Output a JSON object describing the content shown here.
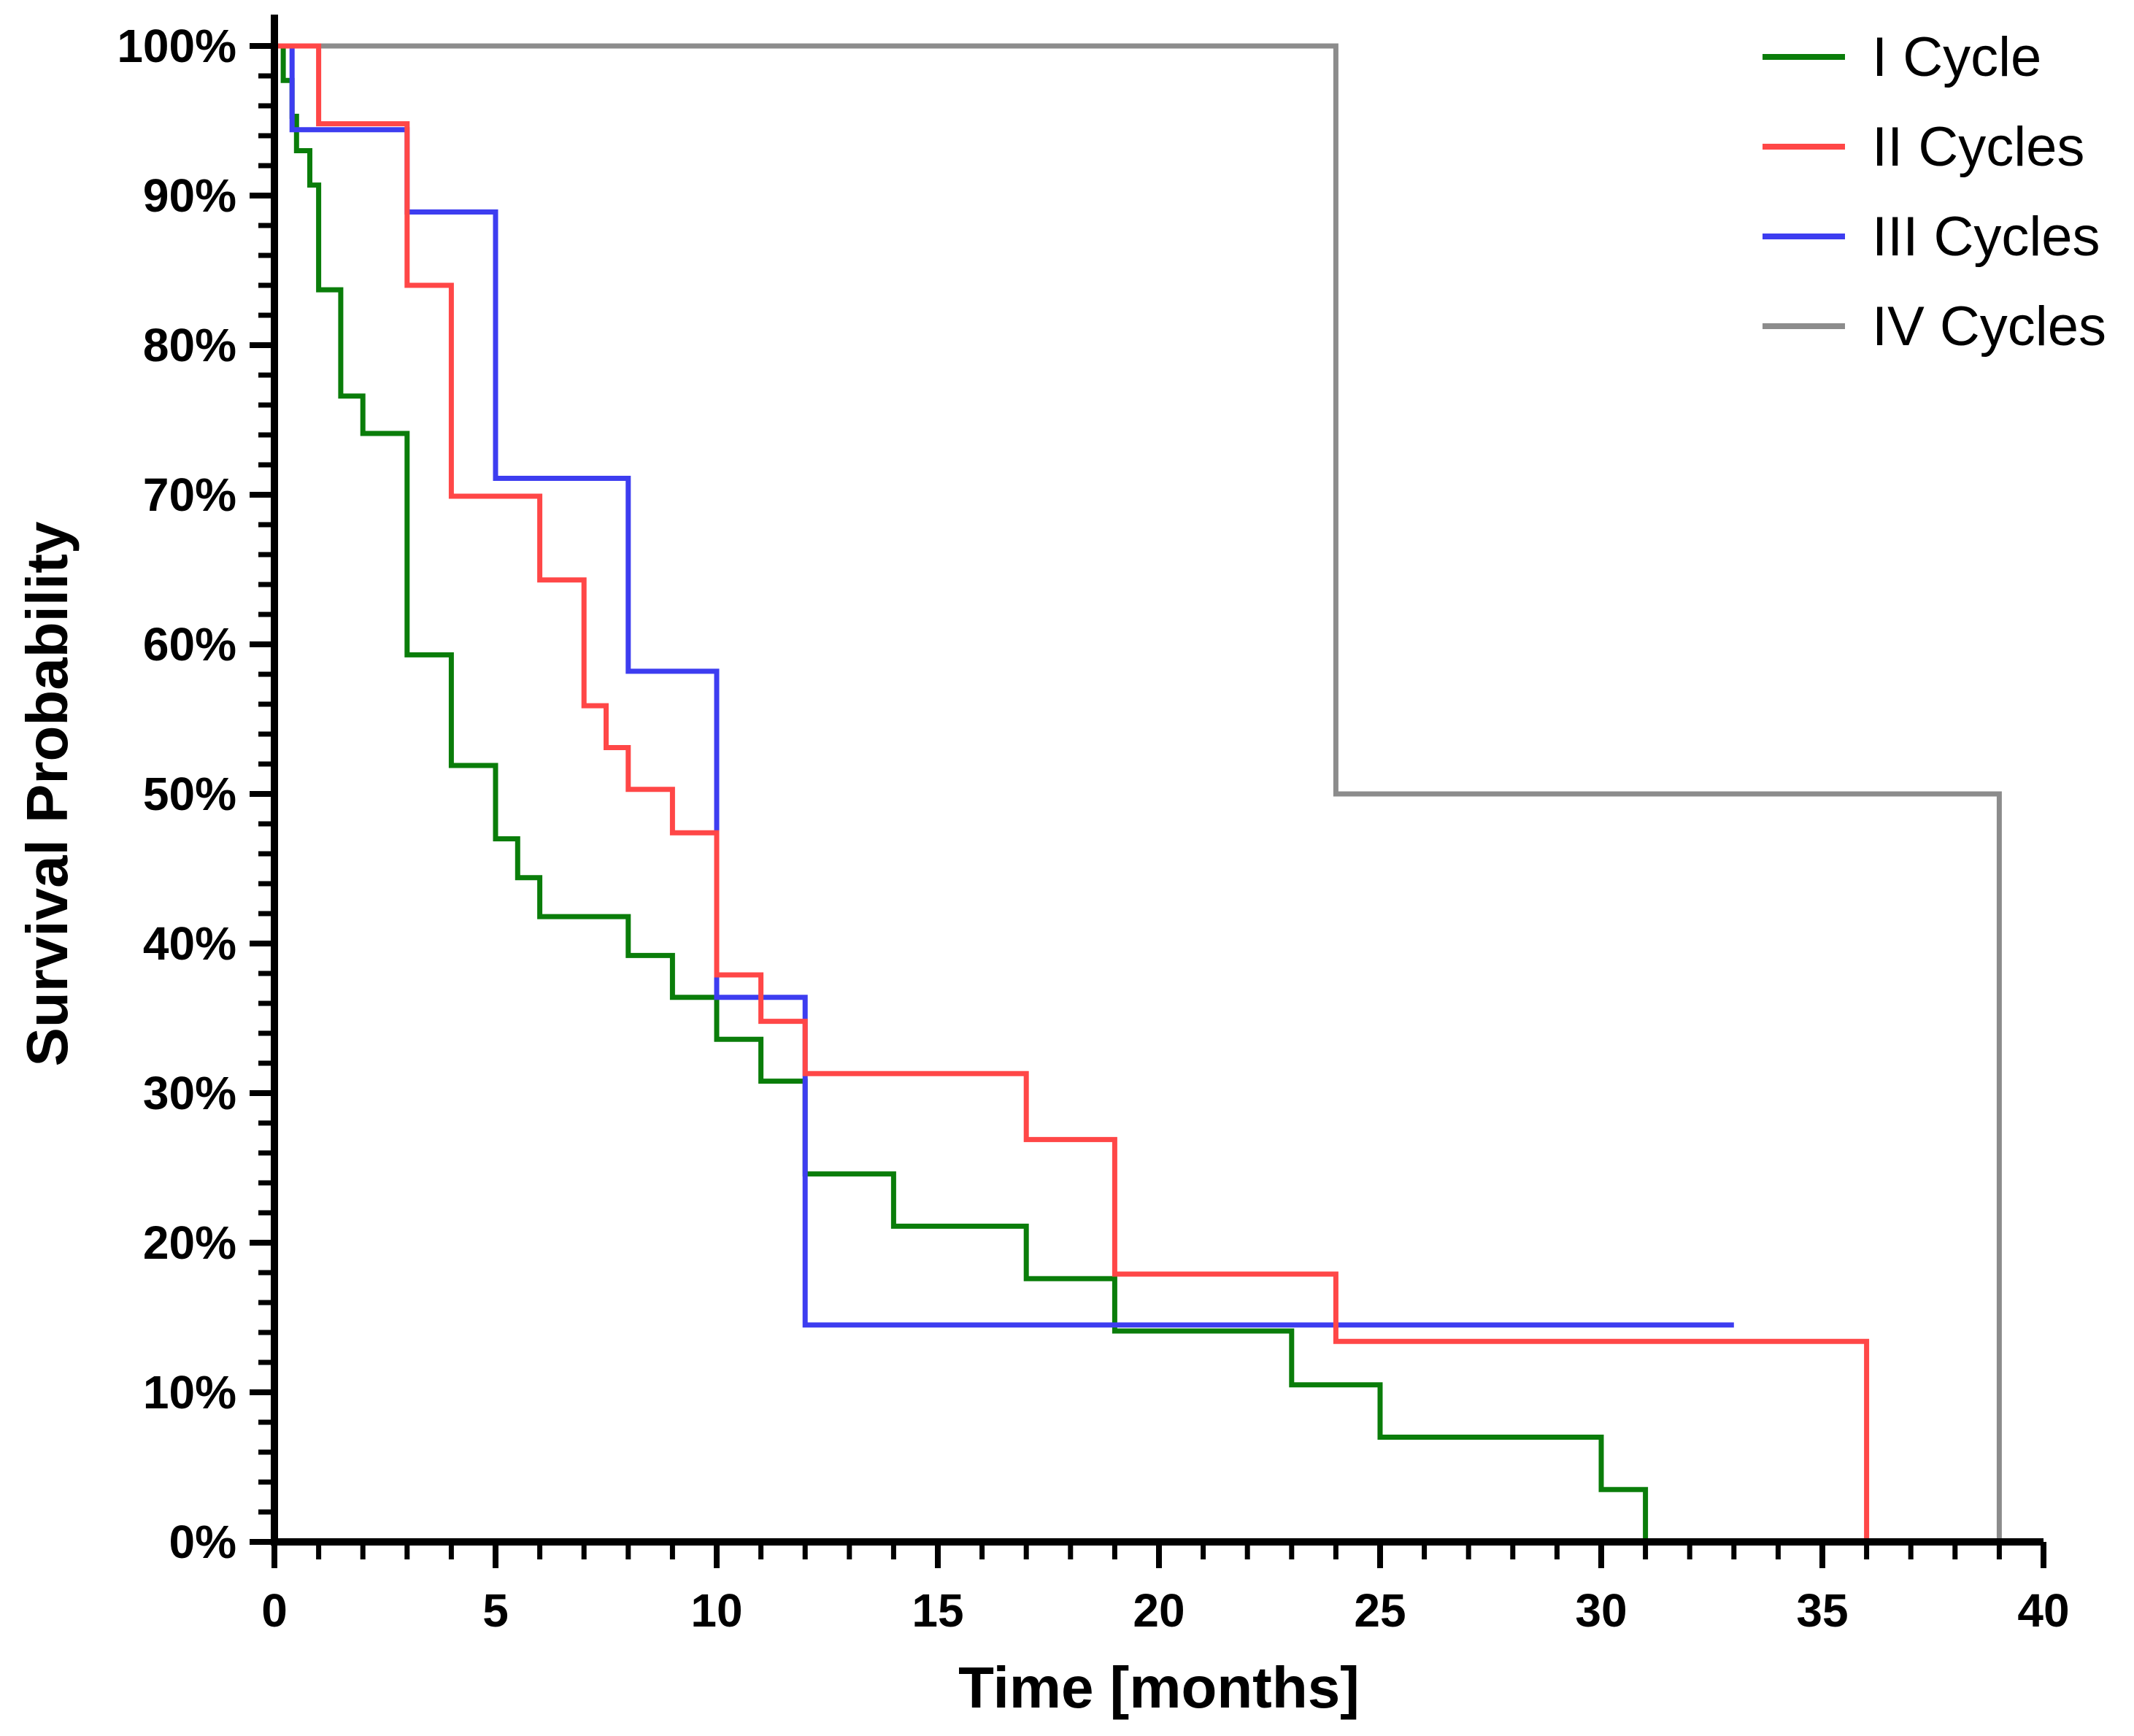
{
  "chart_data": {
    "type": "line",
    "step": true,
    "title": "",
    "xlabel": "Time [months]",
    "ylabel": "Survival Probability",
    "xlim": [
      0,
      40
    ],
    "ylim": [
      0,
      100
    ],
    "x_ticks": [
      0,
      5,
      10,
      15,
      20,
      25,
      30,
      35,
      40
    ],
    "x_tick_labels": [
      "0",
      "5",
      "10",
      "15",
      "20",
      "25",
      "30",
      "35",
      "40"
    ],
    "y_ticks": [
      0,
      10,
      20,
      30,
      40,
      50,
      60,
      70,
      80,
      90,
      100
    ],
    "y_tick_labels": [
      "0%",
      "10%",
      "20%",
      "30%",
      "40%",
      "50%",
      "60%",
      "70%",
      "80%",
      "90%",
      "100%"
    ],
    "legend_position": "top-right",
    "series": [
      {
        "name": "I Cycle",
        "color": "#0a7d0a",
        "points": [
          [
            0,
            100
          ],
          [
            0.2,
            100
          ],
          [
            0.2,
            97.7
          ],
          [
            0.4,
            97.7
          ],
          [
            0.4,
            95.3
          ],
          [
            0.5,
            95.3
          ],
          [
            0.5,
            93
          ],
          [
            0.8,
            93
          ],
          [
            0.8,
            90.7
          ],
          [
            1,
            90.7
          ],
          [
            1,
            83.7
          ],
          [
            1.5,
            83.7
          ],
          [
            1.5,
            76.6
          ],
          [
            2,
            76.6
          ],
          [
            2,
            74.1
          ],
          [
            3,
            74.1
          ],
          [
            3,
            59.3
          ],
          [
            4,
            59.3
          ],
          [
            4,
            51.9
          ],
          [
            5,
            51.9
          ],
          [
            5,
            47
          ],
          [
            5.5,
            47
          ],
          [
            5.5,
            44.4
          ],
          [
            6,
            44.4
          ],
          [
            6,
            41.8
          ],
          [
            8,
            41.8
          ],
          [
            8,
            39.2
          ],
          [
            9,
            39.2
          ],
          [
            9,
            36.4
          ],
          [
            10,
            36.4
          ],
          [
            10,
            33.6
          ],
          [
            11,
            33.6
          ],
          [
            11,
            30.8
          ],
          [
            12,
            30.8
          ],
          [
            12,
            24.6
          ],
          [
            14,
            24.6
          ],
          [
            14,
            21.1
          ],
          [
            17,
            21.1
          ],
          [
            17,
            17.6
          ],
          [
            19,
            17.6
          ],
          [
            19,
            14.1
          ],
          [
            23,
            14.1
          ],
          [
            23,
            10.5
          ],
          [
            25,
            10.5
          ],
          [
            25,
            7
          ],
          [
            30,
            7
          ],
          [
            30,
            3.5
          ],
          [
            31,
            3.5
          ],
          [
            31,
            0
          ]
        ]
      },
      {
        "name": "II Cycles",
        "color": "#ff4747",
        "points": [
          [
            0,
            100
          ],
          [
            1,
            100
          ],
          [
            1,
            94.8
          ],
          [
            3,
            94.8
          ],
          [
            3,
            84
          ],
          [
            4,
            84
          ],
          [
            4,
            69.9
          ],
          [
            6,
            69.9
          ],
          [
            6,
            64.3
          ],
          [
            7,
            64.3
          ],
          [
            7,
            55.9
          ],
          [
            7.5,
            55.9
          ],
          [
            7.5,
            53.1
          ],
          [
            8,
            53.1
          ],
          [
            8,
            50.3
          ],
          [
            9,
            50.3
          ],
          [
            9,
            47.4
          ],
          [
            10,
            47.4
          ],
          [
            10,
            37.9
          ],
          [
            11,
            37.9
          ],
          [
            11,
            34.8
          ],
          [
            12,
            34.8
          ],
          [
            12,
            31.3
          ],
          [
            17,
            31.3
          ],
          [
            17,
            26.9
          ],
          [
            19,
            26.9
          ],
          [
            19,
            17.9
          ],
          [
            24,
            17.9
          ],
          [
            24,
            13.4
          ],
          [
            36,
            13.4
          ],
          [
            36,
            0
          ]
        ]
      },
      {
        "name": "III Cycles",
        "color": "#3d3df0",
        "points": [
          [
            0,
            100
          ],
          [
            0.4,
            100
          ],
          [
            0.4,
            94.4
          ],
          [
            3,
            94.4
          ],
          [
            3,
            88.9
          ],
          [
            5,
            88.9
          ],
          [
            5,
            71.1
          ],
          [
            8,
            71.1
          ],
          [
            8,
            58.2
          ],
          [
            10,
            58.2
          ],
          [
            10,
            36.4
          ],
          [
            12,
            36.4
          ],
          [
            12,
            14.5
          ],
          [
            33,
            14.5
          ]
        ]
      },
      {
        "name": "IV Cycles",
        "color": "#8c8c8c",
        "points": [
          [
            0,
            100
          ],
          [
            24,
            100
          ],
          [
            24,
            50
          ],
          [
            39,
            50
          ],
          [
            39,
            0
          ]
        ]
      }
    ]
  }
}
